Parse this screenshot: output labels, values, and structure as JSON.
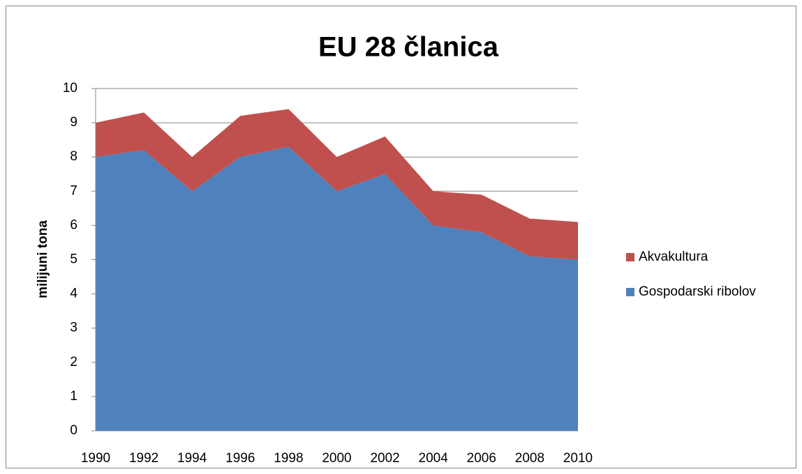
{
  "chart_data": {
    "type": "stacked_area",
    "title": "EU 28 članica",
    "y_label": "milijuni tona",
    "categories": [
      "1990",
      "1992",
      "1994",
      "1996",
      "1998",
      "2000",
      "2002",
      "2004",
      "2006",
      "2008",
      "2010"
    ],
    "series": [
      {
        "name": "Gospodarski ribolov",
        "color": "#4f81bd",
        "values": [
          8.0,
          8.2,
          7.0,
          8.0,
          8.3,
          7.0,
          7.5,
          6.0,
          5.8,
          5.1,
          5.0
        ]
      },
      {
        "name": "Akvakultura",
        "color": "#c0504d",
        "values": [
          1.0,
          1.1,
          1.0,
          1.2,
          1.1,
          1.0,
          1.1,
          1.0,
          1.1,
          1.1,
          1.1
        ]
      }
    ],
    "ylim": [
      0,
      10
    ],
    "yticks": [
      0,
      1,
      2,
      3,
      4,
      5,
      6,
      7,
      8,
      9,
      10
    ],
    "grid": true,
    "legend": "right"
  }
}
